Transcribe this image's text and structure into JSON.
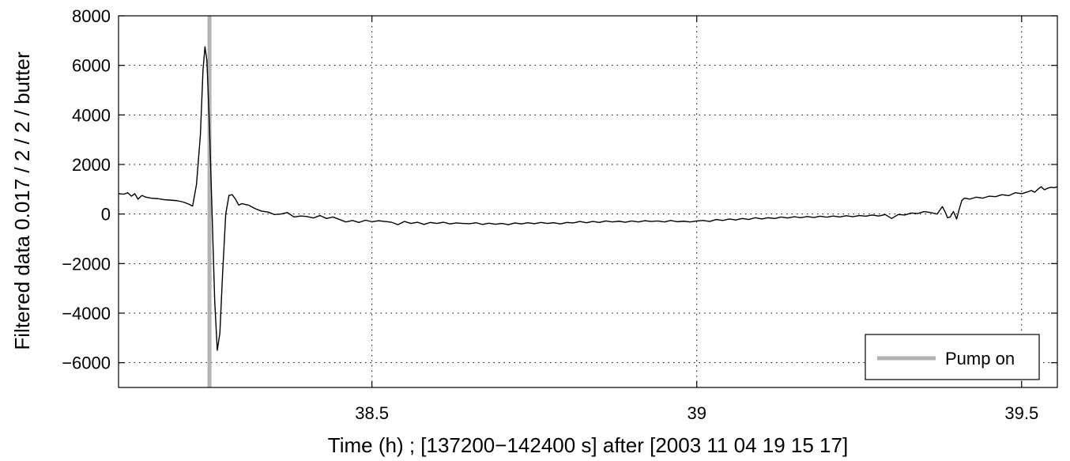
{
  "chart_data": {
    "type": "line",
    "title": "",
    "xlabel": "Time (h) ; [137200−142400 s] after [2003 11 04 19 15 17]",
    "ylabel": "Filtered data  0.017 / 2 / 2 / butter",
    "xlim": [
      38.11,
      39.555
    ],
    "ylim": [
      -7000,
      8000
    ],
    "xticks": [
      38.5,
      39,
      39.5
    ],
    "xtick_labels": [
      "38.5",
      "39",
      "39.5"
    ],
    "yticks": [
      -6000,
      -4000,
      -2000,
      0,
      2000,
      4000,
      6000,
      8000
    ],
    "ytick_labels": [
      "−6000",
      "−4000",
      "−2000",
      "0",
      "2000",
      "4000",
      "6000",
      "8000"
    ],
    "grid": true,
    "legend_position": "bottom-right",
    "colors": {
      "signal": "#000000",
      "pump": "#b3b3b3"
    },
    "series": [
      {
        "values": [
          [
            38.11,
            820
          ],
          [
            38.118,
            800
          ],
          [
            38.124,
            860
          ],
          [
            38.13,
            720
          ],
          [
            38.135,
            820
          ],
          [
            38.14,
            600
          ],
          [
            38.146,
            750
          ],
          [
            38.152,
            680
          ],
          [
            38.16,
            640
          ],
          [
            38.17,
            620
          ],
          [
            38.18,
            580
          ],
          [
            38.19,
            560
          ],
          [
            38.2,
            540
          ],
          [
            38.21,
            480
          ],
          [
            38.218,
            400
          ],
          [
            38.224,
            320
          ],
          [
            38.23,
            1200
          ],
          [
            38.236,
            3200
          ],
          [
            38.24,
            5800
          ],
          [
            38.243,
            6750
          ],
          [
            38.246,
            6200
          ],
          [
            38.25,
            3500
          ],
          [
            38.254,
            0
          ],
          [
            38.258,
            -3500
          ],
          [
            38.262,
            -5500
          ],
          [
            38.266,
            -4800
          ],
          [
            38.27,
            -2500
          ],
          [
            38.275,
            0
          ],
          [
            38.28,
            750
          ],
          [
            38.285,
            780
          ],
          [
            38.29,
            600
          ],
          [
            38.295,
            360
          ],
          [
            38.3,
            420
          ],
          [
            38.31,
            360
          ],
          [
            38.32,
            220
          ],
          [
            38.33,
            120
          ],
          [
            38.34,
            80
          ],
          [
            38.35,
            -20
          ],
          [
            38.36,
            0
          ],
          [
            38.37,
            60
          ],
          [
            38.38,
            -120
          ],
          [
            38.39,
            -80
          ],
          [
            38.4,
            -100
          ],
          [
            38.41,
            -160
          ],
          [
            38.42,
            -60
          ],
          [
            38.43,
            -180
          ],
          [
            38.44,
            -120
          ],
          [
            38.45,
            -220
          ],
          [
            38.46,
            -320
          ],
          [
            38.47,
            -260
          ],
          [
            38.48,
            -340
          ],
          [
            38.49,
            -250
          ],
          [
            38.5,
            -310
          ],
          [
            38.51,
            -270
          ],
          [
            38.52,
            -300
          ],
          [
            38.53,
            -330
          ],
          [
            38.54,
            -430
          ],
          [
            38.55,
            -300
          ],
          [
            38.56,
            -380
          ],
          [
            38.57,
            -330
          ],
          [
            38.58,
            -420
          ],
          [
            38.59,
            -340
          ],
          [
            38.6,
            -380
          ],
          [
            38.61,
            -330
          ],
          [
            38.62,
            -400
          ],
          [
            38.63,
            -360
          ],
          [
            38.64,
            -380
          ],
          [
            38.65,
            -390
          ],
          [
            38.66,
            -350
          ],
          [
            38.67,
            -420
          ],
          [
            38.68,
            -370
          ],
          [
            38.69,
            -410
          ],
          [
            38.7,
            -380
          ],
          [
            38.71,
            -430
          ],
          [
            38.72,
            -360
          ],
          [
            38.73,
            -400
          ],
          [
            38.74,
            -350
          ],
          [
            38.75,
            -390
          ],
          [
            38.76,
            -340
          ],
          [
            38.77,
            -380
          ],
          [
            38.78,
            -350
          ],
          [
            38.79,
            -400
          ],
          [
            38.8,
            -340
          ],
          [
            38.81,
            -360
          ],
          [
            38.82,
            -300
          ],
          [
            38.83,
            -350
          ],
          [
            38.84,
            -300
          ],
          [
            38.85,
            -340
          ],
          [
            38.86,
            -280
          ],
          [
            38.87,
            -320
          ],
          [
            38.88,
            -290
          ],
          [
            38.89,
            -330
          ],
          [
            38.9,
            -280
          ],
          [
            38.91,
            -320
          ],
          [
            38.92,
            -270
          ],
          [
            38.93,
            -300
          ],
          [
            38.94,
            -280
          ],
          [
            38.95,
            -320
          ],
          [
            38.96,
            -260
          ],
          [
            38.97,
            -310
          ],
          [
            38.98,
            -290
          ],
          [
            38.99,
            -320
          ],
          [
            39.0,
            -280
          ],
          [
            39.01,
            -260
          ],
          [
            39.02,
            -300
          ],
          [
            39.03,
            -220
          ],
          [
            39.04,
            -260
          ],
          [
            39.05,
            -200
          ],
          [
            39.06,
            -240
          ],
          [
            39.07,
            -180
          ],
          [
            39.08,
            -220
          ],
          [
            39.09,
            -150
          ],
          [
            39.1,
            -200
          ],
          [
            39.11,
            -150
          ],
          [
            39.12,
            -180
          ],
          [
            39.13,
            -120
          ],
          [
            39.14,
            -160
          ],
          [
            39.15,
            -110
          ],
          [
            39.16,
            -150
          ],
          [
            39.17,
            -100
          ],
          [
            39.18,
            -140
          ],
          [
            39.19,
            -90
          ],
          [
            39.2,
            -130
          ],
          [
            39.21,
            -80
          ],
          [
            39.22,
            -120
          ],
          [
            39.23,
            -70
          ],
          [
            39.24,
            -110
          ],
          [
            39.25,
            -60
          ],
          [
            39.26,
            -90
          ],
          [
            39.27,
            -40
          ],
          [
            39.28,
            -80
          ],
          [
            39.29,
            -20
          ],
          [
            39.3,
            -180
          ],
          [
            39.31,
            -20
          ],
          [
            39.32,
            -40
          ],
          [
            39.33,
            40
          ],
          [
            39.34,
            20
          ],
          [
            39.35,
            100
          ],
          [
            39.36,
            60
          ],
          [
            39.37,
            0
          ],
          [
            39.378,
            300
          ],
          [
            39.382,
            100
          ],
          [
            39.386,
            -150
          ],
          [
            39.39,
            -120
          ],
          [
            39.395,
            100
          ],
          [
            39.4,
            -200
          ],
          [
            39.404,
            200
          ],
          [
            39.408,
            550
          ],
          [
            39.412,
            640
          ],
          [
            39.42,
            600
          ],
          [
            39.43,
            680
          ],
          [
            39.44,
            640
          ],
          [
            39.45,
            720
          ],
          [
            39.46,
            700
          ],
          [
            39.47,
            780
          ],
          [
            39.48,
            740
          ],
          [
            39.49,
            860
          ],
          [
            39.5,
            820
          ],
          [
            39.51,
            900
          ],
          [
            39.515,
            950
          ],
          [
            39.52,
            880
          ],
          [
            39.525,
            1000
          ],
          [
            39.53,
            1100
          ],
          [
            39.535,
            980
          ],
          [
            39.54,
            1040
          ],
          [
            39.545,
            1080
          ],
          [
            39.55,
            1060
          ],
          [
            39.555,
            1100
          ]
        ]
      }
    ],
    "markers": [
      {
        "name": "Pump on",
        "x": 38.25
      }
    ]
  }
}
